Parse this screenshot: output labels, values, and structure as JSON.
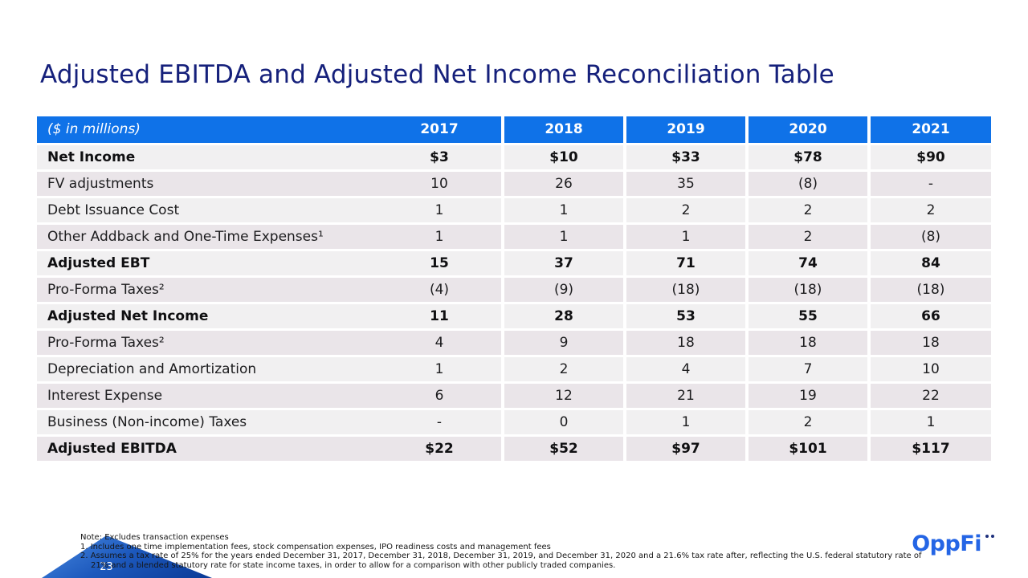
{
  "slide": {
    "title": "Adjusted EBITDA and Adjusted Net Income Reconciliation Table",
    "page_number": "23",
    "logo_text": "OppFi",
    "notes": [
      "Note: Excludes transaction expenses",
      "1. Includes one time implementation fees, stock compensation expenses, IPO readiness costs and management fees",
      "2. Assumes a tax rate of 25% for the years ended December 31, 2017, December 31, 2018, December 31, 2019, and December 31, 2020 and a 21.6% tax rate after, reflecting the U.S. federal statutory rate of 21% and a blended statutory rate for state income taxes, in order to allow for a comparison with other publicly traded companies."
    ]
  },
  "table": {
    "unit_label": "($ in millions)",
    "years": [
      "2017",
      "2018",
      "2019",
      "2020",
      "2021"
    ],
    "rows": [
      {
        "label": "Net Income",
        "bold": true,
        "values": [
          "$3",
          "$10",
          "$33",
          "$78",
          "$90"
        ]
      },
      {
        "label": "FV adjustments",
        "bold": false,
        "values": [
          "10",
          "26",
          "35",
          "(8)",
          "-"
        ]
      },
      {
        "label": "Debt Issuance Cost",
        "bold": false,
        "values": [
          "1",
          "1",
          "2",
          "2",
          "2"
        ]
      },
      {
        "label": "Other Addback and One-Time Expenses¹",
        "bold": false,
        "values": [
          "1",
          "1",
          "1",
          "2",
          "(8)"
        ]
      },
      {
        "label": "Adjusted EBT",
        "bold": true,
        "values": [
          "15",
          "37",
          "71",
          "74",
          "84"
        ]
      },
      {
        "label": "Pro-Forma Taxes²",
        "bold": false,
        "values": [
          "(4)",
          "(9)",
          "(18)",
          "(18)",
          "(18)"
        ]
      },
      {
        "label": "Adjusted Net Income",
        "bold": true,
        "values": [
          "11",
          "28",
          "53",
          "55",
          "66"
        ]
      },
      {
        "label": "Pro-Forma Taxes²",
        "bold": false,
        "values": [
          "4",
          "9",
          "18",
          "18",
          "18"
        ]
      },
      {
        "label": "Depreciation and Amortization",
        "bold": false,
        "values": [
          "1",
          "2",
          "4",
          "7",
          "10"
        ]
      },
      {
        "label": "Interest Expense",
        "bold": false,
        "values": [
          "6",
          "12",
          "21",
          "19",
          "22"
        ]
      },
      {
        "label": "Business (Non-income) Taxes",
        "bold": false,
        "values": [
          "-",
          "0",
          "1",
          "2",
          "1"
        ]
      },
      {
        "label": "Adjusted EBITDA",
        "bold": true,
        "values": [
          "$22",
          "$52",
          "$97",
          "$101",
          "$117"
        ]
      }
    ]
  },
  "colors": {
    "title-navy": "#15207b",
    "header-blue": "#0f72e8",
    "row-light": "#f1f0f1",
    "row-dark": "#eae5e9",
    "logo-blue": "#2465e5",
    "logo-dot-navy": "#1d2f7c",
    "tri-blue-light": "#4586de",
    "tri-blue-dark": "#0a3a96"
  }
}
